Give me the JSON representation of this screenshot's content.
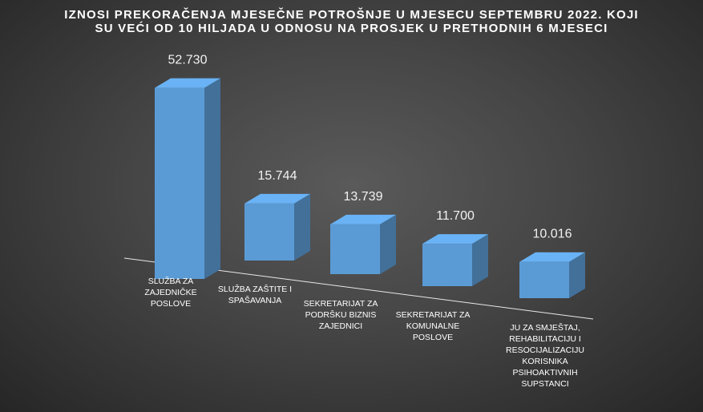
{
  "chart_data": {
    "type": "bar3d",
    "title": "IZNOSI PREKORAČENJA MJESEČNE POTROŠNJE U MJESECU SEPTEMBRU 2022. KOJI SU VEĆI OD 10 HILJADA U ODNOSU NA PROSJEK U PRETHODNIH 6 MJESECI",
    "categories": [
      "SLUŽBA ZA ZAJEDNIČKE POSLOVE",
      "SLUŽBA ZAŠTITE I SPAŠAVANJA",
      "SEKRETARIJAT ZA PODRŠKU BIZNIS ZAJEDNICI",
      "SEKRETARIJAT ZA KOMUNALNE POSLOVE",
      "JU ZA SMJEŠTAJ, REHABILITACIJU I RESOCIJALIZACIJU KORISNIKA PSIHOAKTIVNIH SUPSTANCI"
    ],
    "values": [
      52730,
      15744,
      13739,
      11700,
      10016
    ],
    "value_labels": [
      "52.730",
      "15.744",
      "13.739",
      "11.700",
      "10.016"
    ],
    "color": "#5b9bd5"
  }
}
